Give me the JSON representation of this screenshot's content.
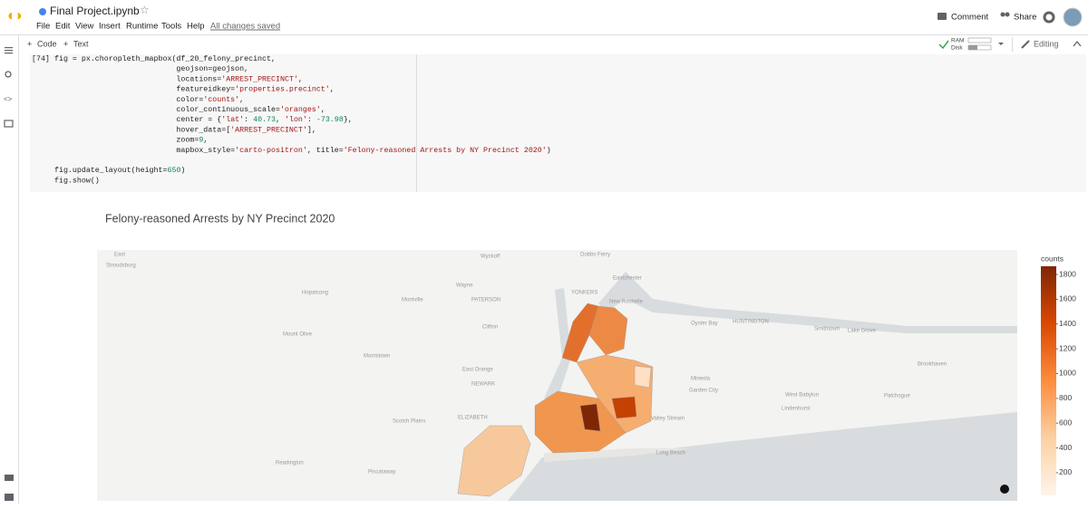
{
  "header": {
    "file_name": "Final Project.ipynb",
    "menu": [
      "File",
      "Edit",
      "View",
      "Insert",
      "Runtime",
      "Tools",
      "Help"
    ],
    "save_status": "All changes saved",
    "actions": [
      "Comment",
      "Share"
    ]
  },
  "toolbar": {
    "add": [
      "Code",
      "Text"
    ],
    "resources": [
      "RAM",
      "Disk"
    ],
    "mode": "Editing"
  },
  "cell": {
    "execution_count": "[74]",
    "code": [
      "fig = px.choropleth_mapbox(df_20_felony_precinct,",
      "                           geojson=geojson,",
      "                           locations='ARREST_PRECINCT',",
      "                           featureidkey='properties.precinct',",
      "                           color='counts',",
      "                           color_continuous_scale='oranges',",
      "                           center = {'lat': 40.73, 'lon': -73.98},",
      "                           hover_data=['ARREST_PRECINCT'],",
      "                           zoom=9,",
      "                           mapbox_style='carto-positron', title='Felony-reasoned Arrests by NY Precinct 2020')",
      "",
      "fig.update_layout(height=650)",
      "fig.show()"
    ]
  },
  "output": {
    "title": "Felony-reasoned Arrests by NY Precinct 2020",
    "map_labels": [
      "East",
      "Stroudsburg",
      "Wyckoff",
      "Dobbs Ferry",
      "Eastchester",
      "Hopatcong",
      "Montville",
      "Wayne",
      "PATERSON",
      "YONKERS",
      "New Rochelle",
      "Mount Olive",
      "Clifton",
      "Morristown",
      "Oyster Bay",
      "HUNTINGTON",
      "Smithtown",
      "Lake Grove",
      "Brookhaven",
      "Patchogue",
      "Mineola",
      "Garden City",
      "West Babylon",
      "Lindenhurst",
      "East Orange",
      "NEWARK",
      "ELIZABETH",
      "Scotch Plains",
      "Valley Stream",
      "Long Beach",
      "Readington",
      "Piscataway"
    ],
    "colorbar": {
      "title": "counts",
      "range": [
        17,
        1866
      ],
      "ticks": [
        200,
        400,
        600,
        800,
        1000,
        1200,
        1400,
        1600,
        1800
      ]
    }
  }
}
